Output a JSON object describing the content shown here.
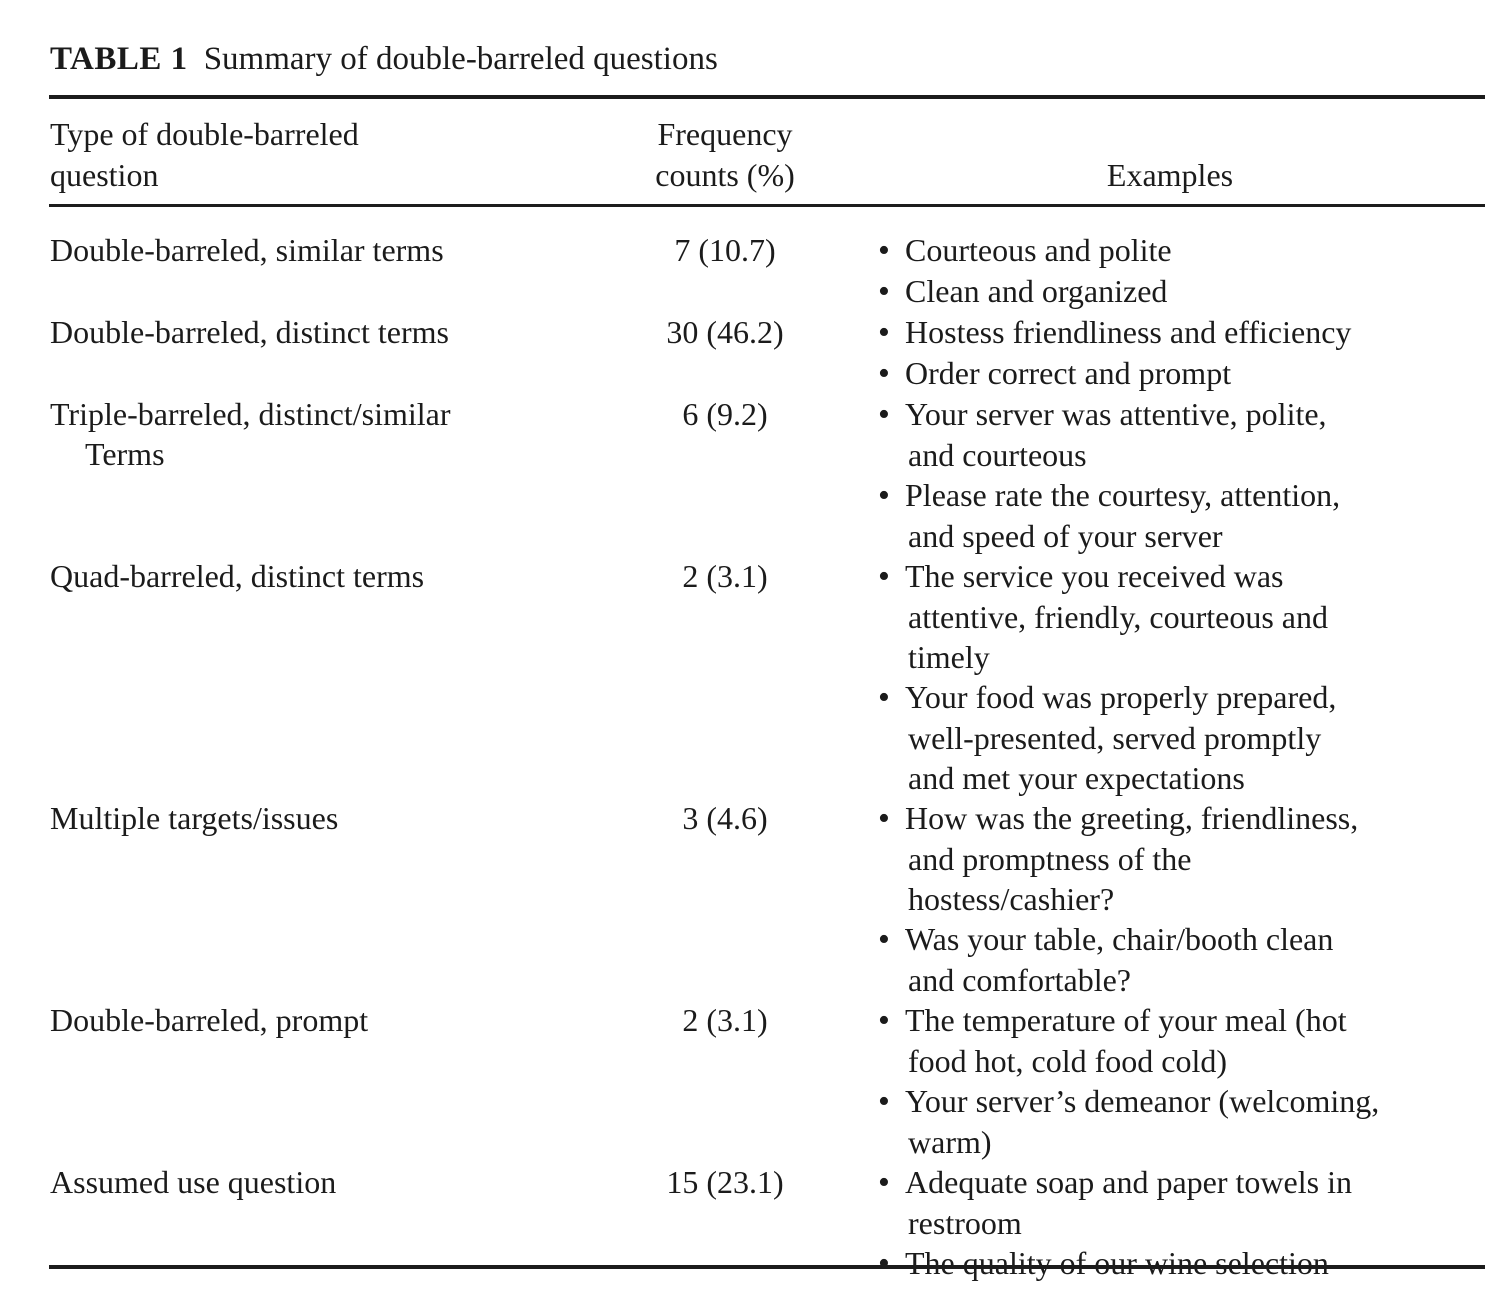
{
  "title": {
    "label": "TABLE 1",
    "text": "Summary of double-barreled questions"
  },
  "columns": {
    "type": [
      "Type of double-barreled",
      "question"
    ],
    "frequency": [
      "Frequency",
      "counts (%)"
    ],
    "examples": "Examples"
  },
  "rows": [
    {
      "type": [
        "Double-barreled, similar terms"
      ],
      "frequency": "7 (10.7)",
      "examples": [
        [
          "Courteous and polite"
        ],
        [
          "Clean and organized"
        ]
      ]
    },
    {
      "type": [
        "Double-barreled, distinct terms"
      ],
      "frequency": "30 (46.2)",
      "examples": [
        [
          "Hostess friendliness and efficiency"
        ],
        [
          "Order correct and prompt"
        ]
      ]
    },
    {
      "type": [
        "Triple-barreled, distinct/similar",
        "Terms"
      ],
      "frequency": "6 (9.2)",
      "examples": [
        [
          "Your server was attentive, polite,",
          "and courteous"
        ],
        [
          "Please rate the courtesy, attention,",
          "and speed of your server"
        ]
      ]
    },
    {
      "type": [
        "Quad-barreled, distinct terms"
      ],
      "frequency": "2 (3.1)",
      "examples": [
        [
          "The service you received was",
          "attentive, friendly, courteous and",
          "timely"
        ],
        [
          "Your food was properly prepared,",
          "well-presented, served promptly",
          "and met your expectations"
        ]
      ]
    },
    {
      "type": [
        "Multiple targets/issues"
      ],
      "frequency": "3 (4.6)",
      "examples": [
        [
          "How was the greeting, friendliness,",
          "and promptness of the",
          "hostess/cashier?"
        ],
        [
          "Was your table, chair/booth clean",
          "and comfortable?"
        ]
      ]
    },
    {
      "type": [
        "Double-barreled, prompt"
      ],
      "frequency": "2 (3.1)",
      "examples": [
        [
          "The temperature of your meal (hot",
          "food hot, cold food cold)"
        ],
        [
          "Your server’s demeanor (welcoming,",
          "warm)"
        ]
      ]
    },
    {
      "type": [
        "Assumed use question"
      ],
      "frequency": "15 (23.1)",
      "examples": [
        [
          "Adequate soap and paper towels in",
          "restroom"
        ],
        [
          "The quality of our wine selection"
        ]
      ]
    }
  ]
}
